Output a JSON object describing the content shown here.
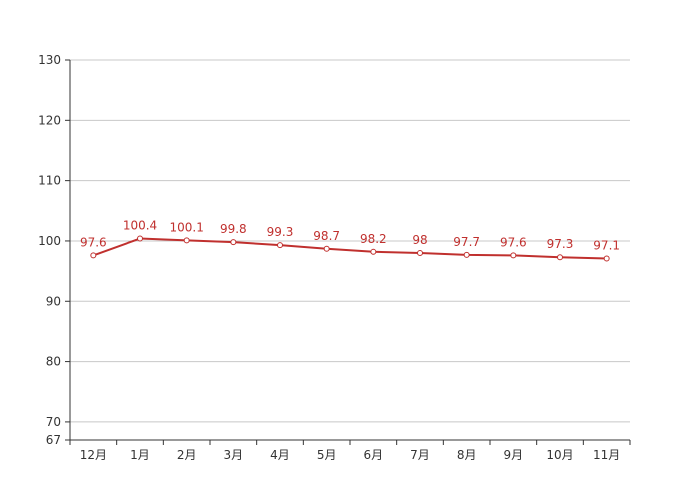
{
  "chart_data": {
    "type": "line",
    "title": "",
    "xlabel": "",
    "ylabel": "",
    "categories": [
      "12月",
      "1月",
      "2月",
      "3月",
      "4月",
      "5月",
      "6月",
      "7月",
      "8月",
      "9月",
      "10月",
      "11月"
    ],
    "series": [
      {
        "values": [
          97.6,
          100.4,
          100.1,
          99.8,
          99.3,
          98.7,
          98.2,
          98,
          97.7,
          97.6,
          97.3,
          97.1
        ],
        "labels": [
          "97.6",
          "100.4",
          "100.1",
          "99.8",
          "99.3",
          "98.7",
          "98.2",
          "98",
          "97.7",
          "97.6",
          "97.3",
          "97.1"
        ],
        "color": "#c0302e"
      }
    ],
    "ylim": [
      67,
      130
    ],
    "yticks": [
      67,
      70,
      80,
      90,
      100,
      110,
      120,
      130
    ],
    "ytick_labels": [
      "67",
      "70",
      "80",
      "90",
      "100",
      "110",
      "120",
      "130"
    ],
    "grid": true,
    "legend": "none",
    "colors": {
      "line": "#c0302e",
      "label": "#c0302e",
      "grid": "#c8c8c8",
      "axis": "#333333",
      "tick_text": "#333333"
    }
  }
}
